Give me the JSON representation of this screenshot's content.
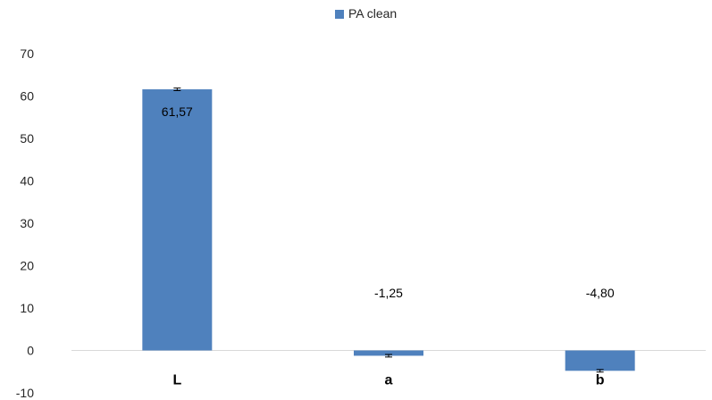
{
  "chart_data": {
    "type": "bar",
    "title": "",
    "xlabel": "",
    "ylabel": "",
    "categories": [
      "L",
      "a",
      "b"
    ],
    "series": [
      {
        "name": "PA clean",
        "values": [
          61.57,
          -1.25,
          -4.8
        ],
        "value_labels": [
          "61,57",
          "-1,25",
          "-4,80"
        ],
        "error": [
          0.3,
          0.3,
          0.3
        ],
        "color": "#4F81BD"
      }
    ],
    "ylim": [
      -10,
      70
    ],
    "yticks": [
      -10,
      0,
      10,
      20,
      30,
      40,
      50,
      60,
      70
    ],
    "ytick_labels": [
      "-10",
      "0",
      "10",
      "20",
      "30",
      "40",
      "50",
      "60",
      "70"
    ],
    "legend_position": "top-center",
    "grid": false
  }
}
